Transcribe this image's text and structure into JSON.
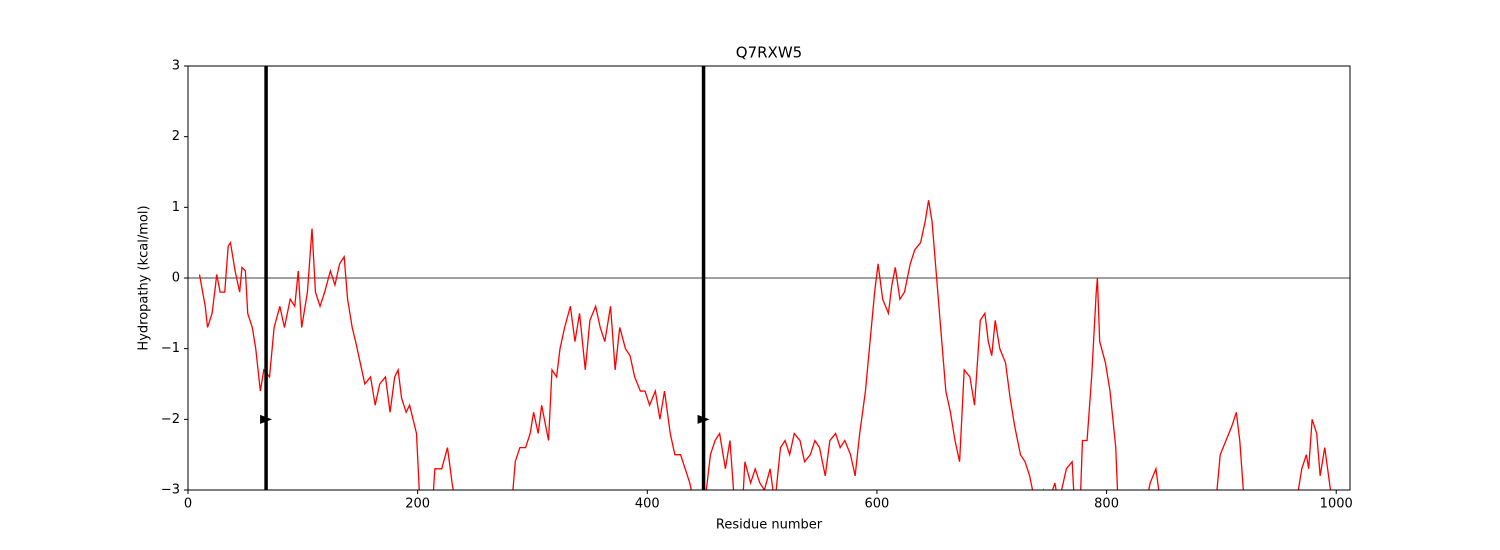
{
  "chart_data": {
    "type": "line",
    "title": "Q7RXW5",
    "xlabel": "Residue number",
    "ylabel": "Hydropathy (kcal/mol)",
    "xlim": [
      0,
      1012
    ],
    "ylim": [
      -3,
      3
    ],
    "xticks": [
      0,
      200,
      400,
      600,
      800,
      1000
    ],
    "yticks": [
      {
        "value": -3,
        "label": "−3"
      },
      {
        "value": -2,
        "label": "−2"
      },
      {
        "value": -1,
        "label": "−1"
      },
      0,
      1,
      2,
      3
    ],
    "hlines": [
      0
    ],
    "vlines": [
      68,
      449
    ],
    "markers": [
      {
        "x": 68,
        "y": -2
      },
      {
        "x": 449,
        "y": -2
      }
    ],
    "series": [
      {
        "name": "Q7RXW5",
        "color": "#ff0000",
        "x": [
          10,
          15,
          17,
          21,
          24,
          25,
          28,
          32,
          35,
          37,
          41,
          45,
          47,
          50,
          52,
          56,
          59,
          63,
          66,
          71,
          75,
          80,
          84,
          89,
          93,
          96,
          99,
          104,
          108,
          111,
          115,
          119,
          124,
          128,
          132,
          136,
          139,
          143,
          146,
          150,
          154,
          159,
          163,
          167,
          172,
          176,
          180,
          183,
          186,
          190,
          193,
          199,
          202,
          213,
          215,
          221,
          226,
          230,
          233,
          282,
          285,
          289,
          294,
          298,
          301,
          305,
          308,
          314,
          317,
          321,
          324,
          328,
          333,
          337,
          341,
          346,
          350,
          355,
          359,
          363,
          368,
          372,
          376,
          381,
          385,
          389,
          394,
          398,
          402,
          407,
          411,
          415,
          420,
          424,
          429,
          433,
          437,
          441,
          450,
          455,
          459,
          463,
          468,
          472,
          476,
          483,
          485,
          490,
          494,
          498,
          502,
          507,
          511,
          516,
          520,
          524,
          528,
          533,
          537,
          542,
          546,
          550,
          555,
          559,
          564,
          568,
          572,
          577,
          581,
          585,
          590,
          594,
          598,
          601,
          605,
          610,
          613,
          616,
          620,
          624,
          629,
          633,
          638,
          642,
          645,
          648,
          651,
          655,
          660,
          664,
          668,
          672,
          676,
          681,
          685,
          690,
          694,
          697,
          700,
          703,
          707,
          712,
          716,
          720,
          725,
          729,
          733,
          738,
          745,
          749,
          755,
          758,
          765,
          770,
          772,
          777,
          779,
          783,
          787,
          791,
          792,
          794,
          799,
          803,
          808,
          810,
          834,
          838,
          843,
          847,
          895,
          899,
          904,
          909,
          913,
          916,
          920,
          965,
          970,
          974,
          976,
          979,
          983,
          986,
          990,
          995,
          998
        ],
        "values": [
          0.05,
          -0.4,
          -0.7,
          -0.5,
          -0.1,
          0.05,
          -0.2,
          -0.2,
          0.45,
          0.5,
          0.1,
          -0.2,
          0.15,
          0.1,
          -0.5,
          -0.7,
          -1.0,
          -1.6,
          -1.3,
          -1.4,
          -0.7,
          -0.4,
          -0.7,
          -0.3,
          -0.4,
          0.1,
          -0.7,
          -0.2,
          0.7,
          -0.2,
          -0.4,
          -0.2,
          0.1,
          -0.1,
          0.2,
          0.3,
          -0.3,
          -0.7,
          -0.9,
          -1.2,
          -1.5,
          -1.4,
          -1.8,
          -1.5,
          -1.4,
          -1.9,
          -1.4,
          -1.3,
          -1.7,
          -1.9,
          -1.8,
          -2.2,
          -3.2,
          -3.2,
          -2.7,
          -2.7,
          -2.4,
          -2.9,
          -3.2,
          -3.2,
          -2.6,
          -2.4,
          -2.4,
          -2.2,
          -1.9,
          -2.2,
          -1.8,
          -2.3,
          -1.3,
          -1.4,
          -1.0,
          -0.7,
          -0.4,
          -0.9,
          -0.5,
          -1.3,
          -0.6,
          -0.4,
          -0.7,
          -0.9,
          -0.4,
          -1.3,
          -0.7,
          -1.0,
          -1.1,
          -1.4,
          -1.6,
          -1.6,
          -1.8,
          -1.6,
          -2.0,
          -1.6,
          -2.2,
          -2.5,
          -2.5,
          -2.7,
          -2.9,
          -3.2,
          -3.2,
          -2.5,
          -2.3,
          -2.2,
          -2.7,
          -2.3,
          -3.2,
          -3.2,
          -2.6,
          -2.9,
          -2.7,
          -2.9,
          -3.0,
          -2.7,
          -3.2,
          -2.4,
          -2.3,
          -2.5,
          -2.2,
          -2.3,
          -2.6,
          -2.5,
          -2.3,
          -2.4,
          -2.8,
          -2.3,
          -2.2,
          -2.4,
          -2.3,
          -2.5,
          -2.8,
          -2.2,
          -1.6,
          -0.9,
          -0.2,
          0.2,
          -0.3,
          -0.5,
          -0.1,
          0.15,
          -0.3,
          -0.2,
          0.2,
          0.4,
          0.5,
          0.8,
          1.1,
          0.8,
          0.2,
          -0.6,
          -1.6,
          -1.9,
          -2.3,
          -2.6,
          -1.3,
          -1.4,
          -1.8,
          -0.6,
          -0.5,
          -0.9,
          -1.1,
          -0.6,
          -1.0,
          -1.2,
          -1.7,
          -2.1,
          -2.5,
          -2.6,
          -2.8,
          -3.2,
          -3.0,
          -3.2,
          -2.9,
          -3.2,
          -2.7,
          -2.6,
          -3.2,
          -3.2,
          -2.3,
          -2.3,
          -1.4,
          -0.2,
          0.0,
          -0.9,
          -1.2,
          -1.6,
          -2.4,
          -3.2,
          -3.2,
          -2.9,
          -2.7,
          -3.2,
          -3.2,
          -2.5,
          -2.3,
          -2.1,
          -1.9,
          -2.3,
          -3.2,
          -3.2,
          -2.7,
          -2.5,
          -2.7,
          -2.0,
          -2.2,
          -2.8,
          -2.4,
          -3.0,
          -3.2
        ]
      }
    ]
  }
}
